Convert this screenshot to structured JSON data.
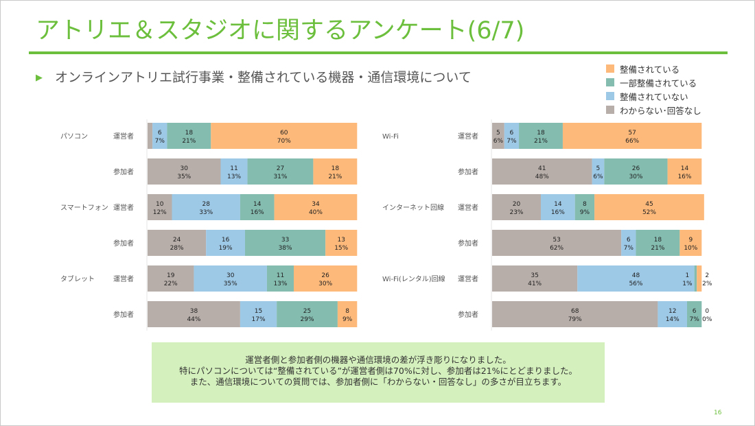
{
  "header": {
    "title": "アトリエ＆スタジオに関するアンケート(6/7)",
    "subtitle": "オンラインアトリエ試行事業・整備されている機器・通信環境について",
    "bullet_icon": "triangle-right-icon"
  },
  "legend": [
    {
      "label": "整備されている",
      "color": "#fdb97a"
    },
    {
      "label": "一部整備されている",
      "color": "#84bcb0"
    },
    {
      "label": "整備されていない",
      "color": "#9dc8e6"
    },
    {
      "label": "わからない･回答なし",
      "color": "#b8aea9"
    }
  ],
  "chart_data": [
    {
      "type": "bar",
      "orientation": "horizontal",
      "stacked": true,
      "segment_order": [
        "わからない･回答なし",
        "整備されていない",
        "一部整備されている",
        "整備されている"
      ],
      "groups": [
        {
          "category": "パソコン",
          "rows": [
            {
              "role": "運営者",
              "values": [
                2,
                6,
                18,
                60
              ],
              "percents": [
                "",
                "7%",
                "21%",
                "70%"
              ],
              "labels_shown": [
                false,
                true,
                true,
                true
              ]
            },
            {
              "role": "参加者",
              "values": [
                30,
                11,
                27,
                18
              ],
              "percents": [
                "35%",
                "13%",
                "31%",
                "21%"
              ]
            }
          ]
        },
        {
          "category": "スマートフォン",
          "rows": [
            {
              "role": "運営者",
              "values": [
                10,
                28,
                14,
                34
              ],
              "percents": [
                "12%",
                "33%",
                "16%",
                "40%"
              ]
            },
            {
              "role": "参加者",
              "values": [
                24,
                16,
                33,
                13
              ],
              "percents": [
                "28%",
                "19%",
                "38%",
                "15%"
              ]
            }
          ]
        },
        {
          "category": "タブレット",
          "rows": [
            {
              "role": "運営者",
              "values": [
                19,
                30,
                11,
                26
              ],
              "percents": [
                "22%",
                "35%",
                "13%",
                "30%"
              ]
            },
            {
              "role": "参加者",
              "values": [
                38,
                15,
                25,
                8
              ],
              "percents": [
                "44%",
                "17%",
                "29%",
                "9%"
              ]
            }
          ]
        }
      ]
    },
    {
      "type": "bar",
      "orientation": "horizontal",
      "stacked": true,
      "segment_order": [
        "わからない･回答なし",
        "整備されていない",
        "一部整備されている",
        "整備されている"
      ],
      "groups": [
        {
          "category": "Wi-Fi",
          "rows": [
            {
              "role": "運営者",
              "values": [
                5,
                6,
                18,
                57
              ],
              "percents": [
                "6%",
                "7%",
                "21%",
                "66%"
              ]
            },
            {
              "role": "参加者",
              "values": [
                41,
                5,
                26,
                14
              ],
              "percents": [
                "48%",
                "6%",
                "30%",
                "16%"
              ]
            }
          ]
        },
        {
          "category": "インターネット回線",
          "rows": [
            {
              "role": "運営者",
              "values": [
                20,
                14,
                8,
                45
              ],
              "percents": [
                "23%",
                "16%",
                "9%",
                "52%"
              ]
            },
            {
              "role": "参加者",
              "values": [
                53,
                6,
                18,
                9
              ],
              "percents": [
                "62%",
                "7%",
                "21%",
                "10%"
              ]
            }
          ]
        },
        {
          "category": "Wi-Fi(レンタル)回線",
          "rows": [
            {
              "role": "運営者",
              "values": [
                35,
                48,
                1,
                2
              ],
              "percents": [
                "41%",
                "56%",
                "1%",
                "2%"
              ]
            },
            {
              "role": "参加者",
              "values": [
                68,
                12,
                6,
                0
              ],
              "percents": [
                "79%",
                "14%",
                "7%",
                "0%"
              ]
            }
          ]
        }
      ]
    }
  ],
  "note": {
    "lines": [
      "運営者側と参加者側の機器や通信環境の差が浮き彫りになりました。",
      "特にパソコンについては“整備されている”が運営者側は70%に対し、参加者は21%にとどまりました。",
      "また、通信環境についての質問では、参加者側に「わからない・回答なし」の多さが目立ちます。"
    ]
  },
  "page_number": "16"
}
